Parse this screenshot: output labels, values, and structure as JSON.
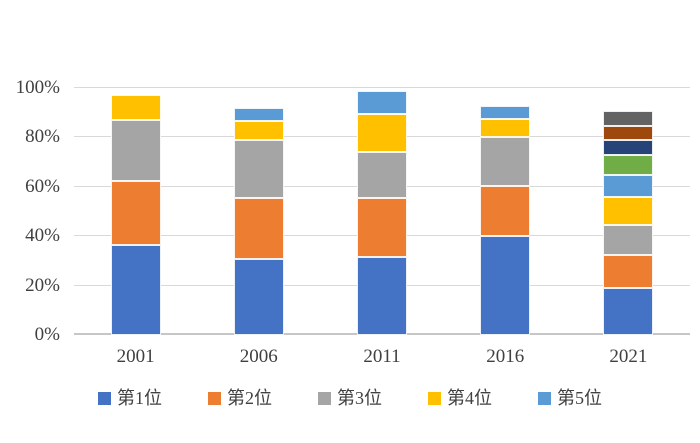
{
  "chart_data": {
    "type": "bar",
    "stacked": true,
    "unit": "percent",
    "title": "",
    "xlabel": "",
    "ylabel": "",
    "ylim": [
      0,
      100
    ],
    "grid": true,
    "categories": [
      "2001",
      "2006",
      "2011",
      "2016",
      "2021"
    ],
    "series": [
      {
        "label": "第1位",
        "color": "#4472C4",
        "in_legend": true,
        "values": [
          36.6,
          30.7,
          31.5,
          39.9,
          19.1
        ]
      },
      {
        "label": "第2位",
        "color": "#ED7D31",
        "in_legend": true,
        "values": [
          25.9,
          24.7,
          23.8,
          20.5,
          13.4
        ]
      },
      {
        "label": "第3位",
        "color": "#A5A5A5",
        "in_legend": true,
        "values": [
          24.5,
          23.6,
          18.8,
          19.7,
          12.0
        ]
      },
      {
        "label": "第4位",
        "color": "#FFC000",
        "in_legend": true,
        "values": [
          10.0,
          7.6,
          15.5,
          7.3,
          11.2
        ]
      },
      {
        "label": "第5位",
        "color": "#5B9BD5",
        "in_legend": true,
        "values": [
          0,
          5.5,
          9.4,
          5.5,
          9.1
        ]
      },
      {
        "label": "",
        "color": "#70AD47",
        "in_legend": false,
        "values": [
          0,
          0,
          0,
          0,
          8.2
        ]
      },
      {
        "label": "",
        "color": "#264478",
        "in_legend": false,
        "values": [
          0,
          0,
          0,
          0,
          5.8
        ]
      },
      {
        "label": "",
        "color": "#9E480E",
        "in_legend": false,
        "values": [
          0,
          0,
          0,
          0,
          5.8
        ]
      },
      {
        "label": "",
        "color": "#636363",
        "in_legend": false,
        "values": [
          0,
          0,
          0,
          0,
          6.0
        ]
      }
    ],
    "y_axis": {
      "tick_labels": [
        "0%",
        "20%",
        "40%",
        "60%",
        "80%",
        "100%"
      ],
      "tick_values": [
        0,
        20,
        40,
        60,
        80,
        100
      ]
    },
    "legend": {
      "position": "bottom",
      "entries": [
        {
          "label": "第1位",
          "color": "#4472C4"
        },
        {
          "label": "第2位",
          "color": "#ED7D31"
        },
        {
          "label": "第3位",
          "color": "#A5A5A5"
        },
        {
          "label": "第4位",
          "color": "#FFC000"
        },
        {
          "label": "第5位",
          "color": "#5B9BD5"
        }
      ]
    }
  },
  "colors": {
    "background": "#FFFFFF",
    "gridline": "#D9D9D9",
    "axis_text": "#404040"
  }
}
